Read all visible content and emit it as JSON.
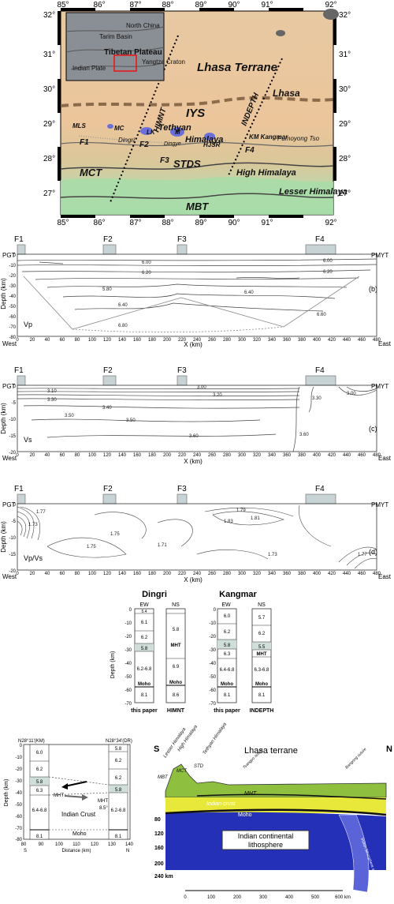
{
  "map": {
    "lat_labels": [
      "32°",
      "31°",
      "30°",
      "29°",
      "28°",
      "27°"
    ],
    "lon_labels": [
      "85°",
      "86°",
      "87°",
      "88°",
      "89°",
      "90°",
      "91°",
      "92°"
    ],
    "inset": {
      "tarim": "Tarim Basin",
      "north_china": "North China",
      "tibet": "Tibetan Plateau",
      "indian_plate": "Indian Plate",
      "yangtze": "Yangtze Craton"
    },
    "labels": {
      "lhasa_terrane": "Lhasa Terrane",
      "lhasa": "Lhasa",
      "iys": "IYS",
      "himnt": "HIMNT",
      "indepth": "INDEPTH",
      "tethyan": "Tethyan",
      "himalaya": "Himalaya",
      "mls": "MLS",
      "mc": "MC",
      "dingri": "Dingri",
      "pumoyong": "Pumoyong Tso",
      "kangmar": "KM Kangmar",
      "lk": "LK",
      "m": "M",
      "hjsr": "HJSR",
      "dingye": "Dingye",
      "f1": "F1",
      "f2": "F2",
      "f3": "F3",
      "f4": "F4",
      "mct": "MCT",
      "stds": "STDS",
      "high_himalaya": "High Himalaya",
      "lesser_himalaya": "Lesser Himalaya",
      "mbt": "MBT"
    }
  },
  "profiles": {
    "faults": [
      "F1",
      "F2",
      "F3",
      "F4"
    ],
    "pgt": "PGT",
    "pmyt": "PMYT",
    "west": "West",
    "east": "East",
    "xlabel": "X (km)",
    "ylabel": "Depth (km)",
    "x_ticks": [
      "0",
      "20",
      "40",
      "60",
      "80",
      "100",
      "120",
      "140",
      "160",
      "180",
      "200",
      "220",
      "240",
      "260",
      "280",
      "300",
      "320",
      "340",
      "360",
      "380",
      "400",
      "420",
      "440",
      "460",
      "480"
    ],
    "vp": {
      "tag": "(b)",
      "name": "Vp",
      "y_ticks": [
        "0",
        "-10",
        "-20",
        "-30",
        "-40",
        "-50",
        "-60",
        "-70",
        "-80"
      ],
      "contours": [
        "6.00",
        "6.20",
        "6.00",
        "6.20",
        "6.40",
        "5.80",
        "6.40",
        "6.80",
        "6.60"
      ]
    },
    "vs": {
      "tag": "(c)",
      "name": "Vs",
      "y_ticks": [
        "0",
        "-5",
        "-10",
        "-15",
        "-20"
      ],
      "contours": [
        "3.00",
        "3.10",
        "3.20",
        "3.30",
        "3.40",
        "3.50",
        "3.60",
        "3.50",
        "3.60",
        "3.30",
        "3.00"
      ]
    },
    "vpvs": {
      "tag": "(d)",
      "name": "Vp/Vs",
      "y_ticks": [
        "0",
        "-5",
        "-10",
        "-15",
        "-20"
      ],
      "contours": [
        "1.73",
        "1.75",
        "1.77",
        "1.79",
        "1.81",
        "1.71",
        "1.75",
        "1.73",
        "1.83",
        "1.77"
      ]
    }
  },
  "columns": {
    "dingri": "Dingri",
    "kangmar": "Kangmar",
    "ew": "EW",
    "ns": "NS",
    "ylabel": "Depth (km)",
    "y_ticks": [
      "0",
      "-10",
      "-20",
      "-30",
      "-40",
      "-50",
      "-60",
      "-70",
      "-80"
    ],
    "cols": [
      {
        "caption": "this paper",
        "vals": [
          "5.4",
          "6.1",
          "6.2",
          "5.8",
          "6.2-6.8",
          "Moho",
          "8.1"
        ]
      },
      {
        "caption": "HIMNT",
        "vals": [
          "5.8",
          "MHT",
          "6.9",
          "Moho",
          "8.6"
        ]
      },
      {
        "caption": "this paper",
        "vals": [
          "6.0",
          "6.2",
          "5.8",
          "6.3",
          "6.4-6.8",
          "Moho",
          "8.1"
        ]
      },
      {
        "caption": "INDEPTH",
        "vals": [
          "5.7",
          "6.2",
          "5.5",
          "MHT",
          "6.3-6.8",
          "Moho",
          "8.1"
        ]
      }
    ]
  },
  "section_left": {
    "left_top": "N28°11'(KM)",
    "right_top": "N28°34'(DR)",
    "ylabel": "Depth (km)",
    "xlabel": "Distance (km)",
    "s": "S",
    "n": "N",
    "x_ticks": [
      "80",
      "90",
      "100",
      "110",
      "120",
      "130",
      "140"
    ],
    "y_ticks": [
      "0",
      "-10",
      "-20",
      "-30",
      "-40",
      "-50",
      "-60",
      "-70",
      "-80"
    ],
    "left_vals": [
      "6.0",
      "6.2",
      "5.8",
      "6.3",
      "6.4-6.8",
      "8.1"
    ],
    "right_vals": [
      "5.8",
      "6.2",
      "6.2",
      "5.8",
      "6.2-6.8",
      "8.1"
    ],
    "mht": "MHT",
    "mht2": "MHT",
    "dip": "8.5°",
    "indian_crust": "Indian Crust",
    "moho": "Moho"
  },
  "section_right": {
    "s": "S",
    "n": "N",
    "lhasa_terrane": "Lhasa terrane",
    "high_himalaya": "High Himalaya",
    "lesser_himalaya": "Lesser Himalaya",
    "tethyan_himalaya": "Tethyan Himalaya",
    "mbt": "MBT",
    "mct": "MCT",
    "std": "STD",
    "tsangpo": "Tsangpo suture",
    "bangong": "Bangong suture",
    "mht": "MHT",
    "indian_crust": "Indian crust",
    "moho": "Moho",
    "lithosphere_1": "Indian continental",
    "lithosphere_2": "lithosphere",
    "depths": [
      "80",
      "120",
      "160",
      "200",
      "240 km"
    ],
    "scale": [
      "0",
      "100",
      "200",
      "300",
      "400",
      "500",
      "600 km"
    ],
    "slab": "Indian lithosphere slab"
  }
}
